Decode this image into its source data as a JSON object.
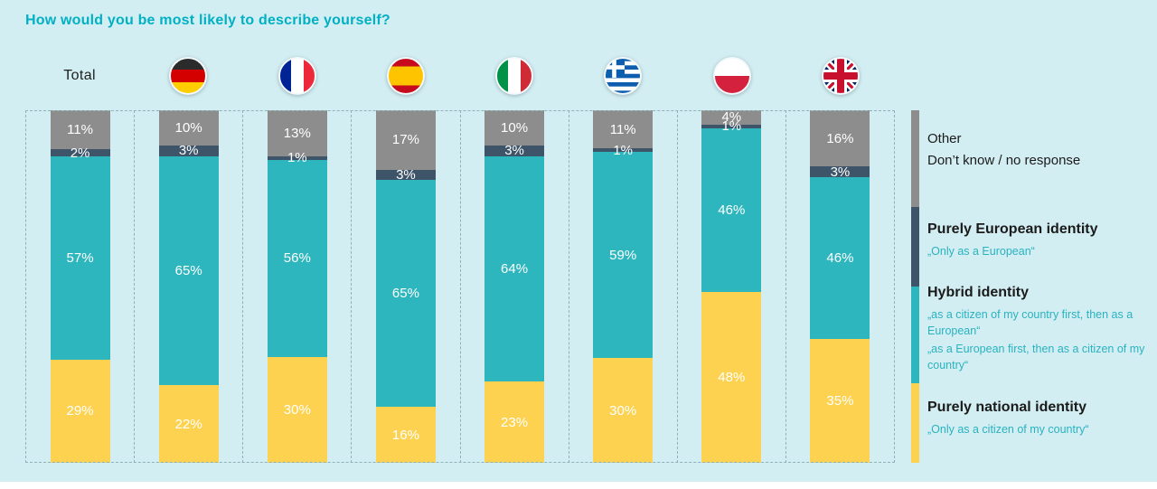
{
  "title": "How would you be most likely to describe yourself?",
  "colors": {
    "background": "#d3eef2",
    "title_accent": "#00b0c4",
    "national": "#fcd250",
    "hybrid": "#2eb6be",
    "european": "#3e5468",
    "other": "#8d8d8d"
  },
  "chart_data": {
    "type": "bar",
    "stacked": true,
    "orientation": "vertical",
    "title": "How would you be most likely to describe yourself?",
    "value_format": "percent",
    "ylim": [
      0,
      100
    ],
    "grid": "dashed-top-bottom-and-column-separators",
    "legend_position": "right",
    "categories": [
      "Total",
      "Germany",
      "France",
      "Spain",
      "Italy",
      "Greece",
      "Poland",
      "United Kingdom"
    ],
    "category_display": [
      "Total",
      "flag-germany",
      "flag-france",
      "flag-spain",
      "flag-italy",
      "flag-greece",
      "flag-poland",
      "flag-united-kingdom"
    ],
    "series": [
      {
        "name": "Purely national identity",
        "color": "#fcd250",
        "values": [
          29,
          22,
          30,
          16,
          23,
          30,
          48,
          35
        ]
      },
      {
        "name": "Hybrid identity",
        "color": "#2eb6be",
        "values": [
          57,
          65,
          56,
          65,
          64,
          59,
          46,
          46
        ]
      },
      {
        "name": "Purely European identity",
        "color": "#3e5468",
        "values": [
          2,
          3,
          1,
          3,
          3,
          1,
          1,
          3
        ]
      },
      {
        "name": "Other / Don’t know / no response",
        "color": "#8d8d8d",
        "values": [
          11,
          10,
          13,
          17,
          10,
          11,
          4,
          16
        ]
      }
    ]
  },
  "legend": {
    "other": {
      "line1": "Other",
      "line2": "Don’t know / no response"
    },
    "european": {
      "title": "Purely European identity",
      "subtitle": "„Only as a European“"
    },
    "hybrid": {
      "title": "Hybrid identity",
      "subtitle1": "„as a citizen of my country first, then as a European“",
      "subtitle2": "„as a European first, then as a citizen of my country“"
    },
    "national": {
      "title": "Purely national identity",
      "subtitle": "„Only as a citizen of my country“"
    }
  }
}
